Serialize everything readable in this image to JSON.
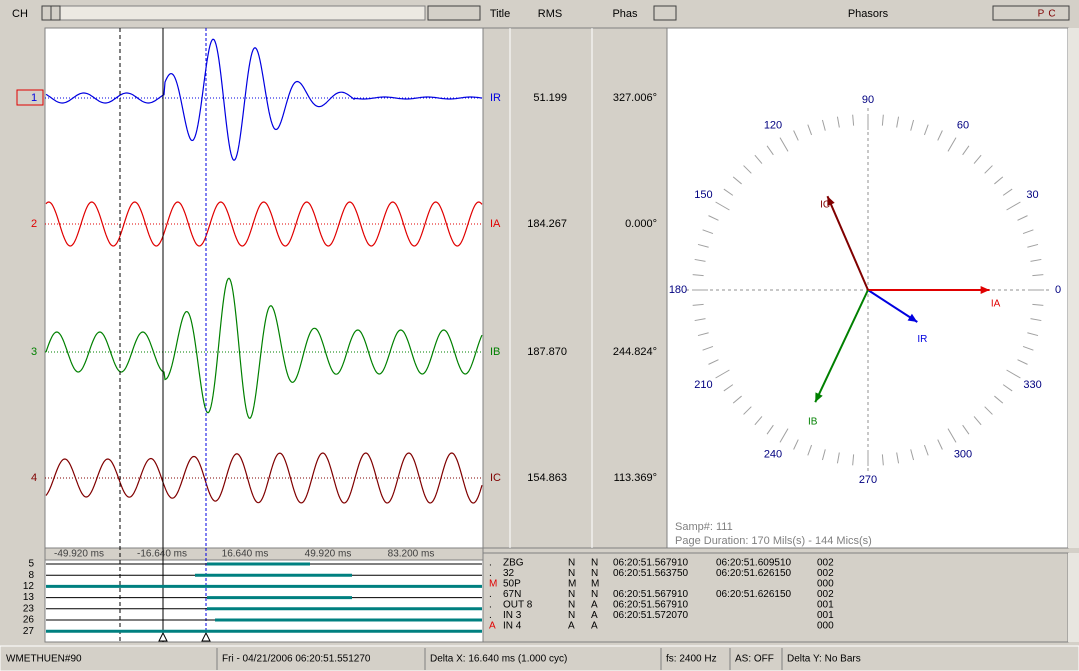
{
  "toolbar": {
    "ch": "CH",
    "title": "Title",
    "rms": "RMS",
    "phas": "Phas",
    "phasors": "Phasors",
    "buttons": [
      "P",
      "C"
    ]
  },
  "channels": {
    "analog_numbers": [
      "1",
      "2",
      "3",
      "4"
    ],
    "time_labels": [
      "-49.920 ms",
      "-16.640 ms",
      "16.640 ms",
      "49.920 ms",
      "83.200 ms"
    ],
    "digital_numbers": [
      "5",
      "8",
      "12",
      "13",
      "23",
      "26",
      "27"
    ]
  },
  "analog_table": {
    "rows": [
      {
        "title": "IR",
        "rms": "51.199",
        "phase": "327.006°"
      },
      {
        "title": "IA",
        "rms": "184.267",
        "phase": "0.000°"
      },
      {
        "title": "IB",
        "rms": "187.870",
        "phase": "244.824°"
      },
      {
        "title": "IC",
        "rms": "154.863",
        "phase": "113.369°"
      }
    ]
  },
  "phasors": {
    "angle_labels": [
      "90",
      "60",
      "30",
      "0",
      "330",
      "300",
      "270",
      "240",
      "210",
      "180",
      "150",
      "120"
    ],
    "sample": "Samp#: 111",
    "duration": "Page Duration: 170 Mils(s) - 144 Mics(s)"
  },
  "digital_table": {
    "rows": [
      {
        "flag": ".",
        "name": "ZBG",
        "state": "N",
        "prev": "N",
        "t1": "06:20:51.567910",
        "t2": "06:20:51.609510",
        "code": "002"
      },
      {
        "flag": ".",
        "name": "32",
        "state": "N",
        "prev": "N",
        "t1": "06:20:51.563750",
        "t2": "06:20:51.626150",
        "code": "002"
      },
      {
        "flag": "M",
        "name": "50P",
        "state": "M",
        "prev": "M",
        "code": "000"
      },
      {
        "flag": ".",
        "name": "67N",
        "state": "N",
        "prev": "N",
        "t1": "06:20:51.567910",
        "t2": "06:20:51.626150",
        "code": "002"
      },
      {
        "flag": ".",
        "name": "OUT 8",
        "state": "N",
        "prev": "A",
        "t1": "06:20:51.567910",
        "code": "001"
      },
      {
        "flag": ".",
        "name": "IN 3",
        "state": "N",
        "prev": "A",
        "t1": "06:20:51.572070",
        "code": "001"
      },
      {
        "flag": "A",
        "name": "IN 4",
        "state": "A",
        "prev": "A",
        "code": "000"
      }
    ]
  },
  "status_bar": [
    "WMETHUEN#90",
    "Fri - 04/21/2006 06:20:51.551270",
    "Delta X: 16.640 ms  (1.000 cyc)",
    "fs:  2400 Hz",
    "AS: OFF",
    "Delta Y:  No Bars"
  ]
}
